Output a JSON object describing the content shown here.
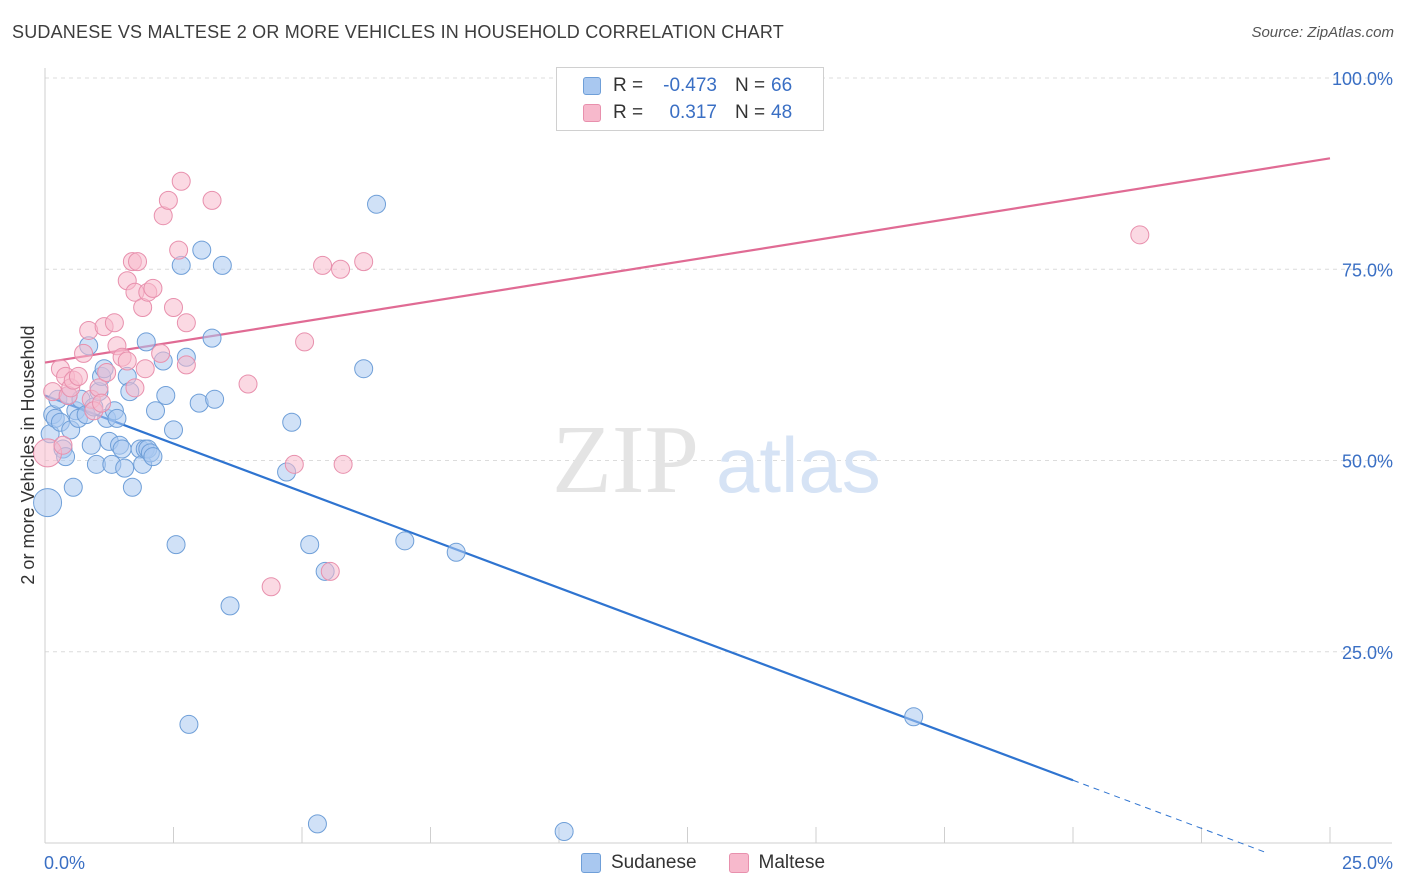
{
  "title": "SUDANESE VS MALTESE 2 OR MORE VEHICLES IN HOUSEHOLD CORRELATION CHART",
  "source": "Source: ZipAtlas.com",
  "watermark": {
    "zip": "ZIP",
    "atlas": "atlas"
  },
  "legend": {
    "rows": [
      {
        "r_label": "R =",
        "r_value": "-0.473",
        "n_label": "N =",
        "n_value": "66",
        "color": "#a9c8f0",
        "border": "#6f9fd8"
      },
      {
        "r_label": "R =",
        "r_value": "0.317",
        "n_label": "N =",
        "n_value": "48",
        "color": "#f7b9cc",
        "border": "#e890ad"
      }
    ]
  },
  "bottom_legend": [
    {
      "label": "Sudanese",
      "color": "#a9c8f0",
      "border": "#6f9fd8"
    },
    {
      "label": "Maltese",
      "color": "#f7b9cc",
      "border": "#e890ad"
    }
  ],
  "chart_data": {
    "type": "scatter",
    "title": "SUDANESE VS MALTESE 2 OR MORE VEHICLES IN HOUSEHOLD CORRELATION CHART",
    "xlabel": "",
    "ylabel": "2 or more Vehicles in Household",
    "xlim": [
      0,
      25
    ],
    "ylim": [
      0,
      100
    ],
    "x_tick_labels": [
      {
        "value": 0,
        "label": "0.0%"
      },
      {
        "value": 25,
        "label": "25.0%"
      }
    ],
    "y_tick_labels": [
      {
        "value": 25,
        "label": "25.0%"
      },
      {
        "value": 50,
        "label": "50.0%"
      },
      {
        "value": 75,
        "label": "75.0%"
      },
      {
        "value": 100,
        "label": "100.0%"
      }
    ],
    "grid": true,
    "series": [
      {
        "name": "Sudanese",
        "color": "#a9c8f0",
        "stroke": "#6f9fd8",
        "line_color": "#2f74d0",
        "trend": {
          "x1": 0.0,
          "y1": 58.5,
          "x2": 20.0,
          "y2": 8.2,
          "dash_to_x": 23.8
        },
        "points": [
          [
            0.05,
            44.5,
            14
          ],
          [
            0.1,
            53.5,
            9
          ],
          [
            0.15,
            56.0,
            9
          ],
          [
            0.2,
            55.5,
            9
          ],
          [
            0.25,
            58.0,
            9
          ],
          [
            0.3,
            55.0,
            9
          ],
          [
            0.35,
            51.5,
            9
          ],
          [
            0.4,
            50.5,
            9
          ],
          [
            0.45,
            58.5,
            9
          ],
          [
            0.5,
            54.0,
            9
          ],
          [
            0.55,
            46.5,
            9
          ],
          [
            0.6,
            56.5,
            9
          ],
          [
            0.65,
            55.5,
            9
          ],
          [
            0.7,
            58.0,
            9
          ],
          [
            0.8,
            56.0,
            9
          ],
          [
            0.85,
            65.0,
            9
          ],
          [
            0.9,
            52.0,
            9
          ],
          [
            0.95,
            57.0,
            9
          ],
          [
            1.0,
            49.5,
            9
          ],
          [
            1.05,
            59.0,
            9
          ],
          [
            1.1,
            61.0,
            9
          ],
          [
            1.15,
            62.0,
            9
          ],
          [
            1.2,
            55.5,
            9
          ],
          [
            1.25,
            52.5,
            9
          ],
          [
            1.3,
            49.5,
            9
          ],
          [
            1.35,
            56.5,
            9
          ],
          [
            1.4,
            55.5,
            9
          ],
          [
            1.45,
            52.0,
            9
          ],
          [
            1.5,
            51.5,
            9
          ],
          [
            1.55,
            49.0,
            9
          ],
          [
            1.6,
            61.0,
            9
          ],
          [
            1.65,
            59.0,
            9
          ],
          [
            1.7,
            46.5,
            9
          ],
          [
            1.85,
            51.5,
            9
          ],
          [
            1.9,
            49.5,
            9
          ],
          [
            1.95,
            51.5,
            9
          ],
          [
            1.97,
            65.5,
            9
          ],
          [
            2.0,
            51.5,
            9
          ],
          [
            2.05,
            51.0,
            9
          ],
          [
            2.1,
            50.5,
            9
          ],
          [
            2.15,
            56.5,
            9
          ],
          [
            2.3,
            63.0,
            9
          ],
          [
            2.35,
            58.5,
            9
          ],
          [
            2.5,
            54.0,
            9
          ],
          [
            2.55,
            39.0,
            9
          ],
          [
            2.65,
            75.5,
            9
          ],
          [
            2.75,
            63.5,
            9
          ],
          [
            2.8,
            15.5,
            9
          ],
          [
            3.0,
            57.5,
            9
          ],
          [
            3.05,
            77.5,
            9
          ],
          [
            3.25,
            66.0,
            9
          ],
          [
            3.3,
            58.0,
            9
          ],
          [
            3.45,
            75.5,
            9
          ],
          [
            3.6,
            31.0,
            9
          ],
          [
            4.7,
            48.5,
            9
          ],
          [
            4.8,
            55.0,
            9
          ],
          [
            5.15,
            39.0,
            9
          ],
          [
            5.3,
            2.5,
            9
          ],
          [
            5.45,
            35.5,
            9
          ],
          [
            6.2,
            62.0,
            9
          ],
          [
            6.45,
            83.5,
            9
          ],
          [
            7.0,
            39.5,
            9
          ],
          [
            8.0,
            38.0,
            9
          ],
          [
            10.1,
            1.5,
            9
          ],
          [
            16.9,
            16.5,
            9
          ]
        ]
      },
      {
        "name": "Maltese",
        "color": "#f7b9cc",
        "stroke": "#e890ad",
        "line_color": "#e06b94",
        "trend": {
          "x1": 0.0,
          "y1": 62.8,
          "x2": 25.0,
          "y2": 89.5
        },
        "points": [
          [
            0.05,
            51.0,
            14
          ],
          [
            0.15,
            59.0,
            9
          ],
          [
            0.3,
            62.0,
            9
          ],
          [
            0.35,
            52.0,
            9
          ],
          [
            0.4,
            61.0,
            9
          ],
          [
            0.45,
            58.5,
            9
          ],
          [
            0.5,
            59.5,
            9
          ],
          [
            0.55,
            60.5,
            9
          ],
          [
            0.65,
            61.0,
            9
          ],
          [
            0.75,
            64.0,
            9
          ],
          [
            0.85,
            67.0,
            9
          ],
          [
            0.9,
            58.0,
            9
          ],
          [
            0.95,
            56.5,
            9
          ],
          [
            1.05,
            59.5,
            9
          ],
          [
            1.1,
            57.5,
            9
          ],
          [
            1.15,
            67.5,
            9
          ],
          [
            1.2,
            61.5,
            9
          ],
          [
            1.35,
            68.0,
            9
          ],
          [
            1.4,
            65.0,
            9
          ],
          [
            1.5,
            63.5,
            9
          ],
          [
            1.6,
            63.0,
            9
          ],
          [
            1.6,
            73.5,
            9
          ],
          [
            1.7,
            76.0,
            9
          ],
          [
            1.75,
            72.0,
            9
          ],
          [
            1.75,
            59.5,
            9
          ],
          [
            1.8,
            76.0,
            9
          ],
          [
            1.9,
            70.0,
            9
          ],
          [
            1.95,
            62.0,
            9
          ],
          [
            2.0,
            72.0,
            9
          ],
          [
            2.1,
            72.5,
            9
          ],
          [
            2.25,
            64.0,
            9
          ],
          [
            2.3,
            82.0,
            9
          ],
          [
            2.4,
            84.0,
            9
          ],
          [
            2.5,
            70.0,
            9
          ],
          [
            2.6,
            77.5,
            9
          ],
          [
            2.65,
            86.5,
            9
          ],
          [
            2.75,
            68.0,
            9
          ],
          [
            2.75,
            62.5,
            9
          ],
          [
            3.25,
            84.0,
            9
          ],
          [
            3.95,
            60.0,
            9
          ],
          [
            4.4,
            33.5,
            9
          ],
          [
            4.85,
            49.5,
            9
          ],
          [
            5.05,
            65.5,
            9
          ],
          [
            5.4,
            75.5,
            9
          ],
          [
            5.55,
            35.5,
            9
          ],
          [
            5.75,
            75.0,
            9
          ],
          [
            5.8,
            49.5,
            9
          ],
          [
            6.2,
            76.0,
            9
          ],
          [
            21.3,
            79.5,
            9
          ]
        ]
      }
    ]
  }
}
